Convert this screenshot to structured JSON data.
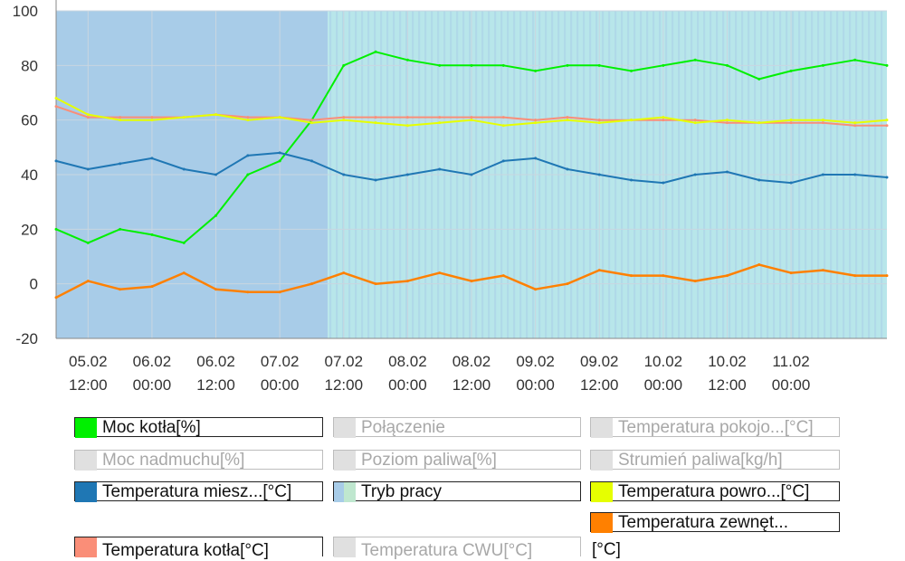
{
  "chart_data": {
    "type": "line",
    "ylim": [
      -20,
      100
    ],
    "y_ticks": [
      100,
      80,
      60,
      40,
      20,
      0,
      -20
    ],
    "x_range": [
      "2024-02-05T06:00",
      "2024-02-11T18:00"
    ],
    "x_ticks": [
      {
        "line1": "05.02",
        "line2": "12:00"
      },
      {
        "line1": "06.02",
        "line2": "00:00"
      },
      {
        "line1": "06.02",
        "line2": "12:00"
      },
      {
        "line1": "07.02",
        "line2": "00:00"
      },
      {
        "line1": "07.02",
        "line2": "12:00"
      },
      {
        "line1": "08.02",
        "line2": "00:00"
      },
      {
        "line1": "08.02",
        "line2": "12:00"
      },
      {
        "line1": "09.02",
        "line2": "00:00"
      },
      {
        "line1": "09.02",
        "line2": "12:00"
      },
      {
        "line1": "10.02",
        "line2": "00:00"
      },
      {
        "line1": "10.02",
        "line2": "12:00"
      },
      {
        "line1": "11.02",
        "line2": "00:00"
      }
    ],
    "grid": true,
    "series": [
      {
        "name": "Moc kotła[%]",
        "color": "#00f000",
        "x": [
          "05.02 06:00",
          "05.02 12:00",
          "05.02 18:00",
          "06.02 00:00",
          "06.02 06:00",
          "06.02 12:00",
          "06.02 18:00",
          "07.02 00:00",
          "07.02 06:00",
          "07.02 12:00",
          "07.02 18:00",
          "08.02 00:00",
          "08.02 06:00",
          "08.02 12:00",
          "08.02 18:00",
          "09.02 00:00",
          "09.02 06:00",
          "09.02 12:00",
          "09.02 18:00",
          "10.02 00:00",
          "10.02 06:00",
          "10.02 12:00",
          "10.02 18:00",
          "11.02 00:00",
          "11.02 06:00",
          "11.02 12:00",
          "11.02 18:00"
        ],
        "values": [
          20,
          15,
          20,
          18,
          15,
          25,
          40,
          45,
          60,
          80,
          85,
          82,
          80,
          80,
          80,
          78,
          80,
          80,
          78,
          80,
          82,
          80,
          75,
          78,
          80,
          82,
          80
        ]
      },
      {
        "name": "Temperatura miesz...[°C]",
        "color": "#1f77b4",
        "x": [
          "05.02 06:00",
          "05.02 12:00",
          "05.02 18:00",
          "06.02 00:00",
          "06.02 06:00",
          "06.02 12:00",
          "06.02 18:00",
          "07.02 00:00",
          "07.02 06:00",
          "07.02 12:00",
          "07.02 18:00",
          "08.02 00:00",
          "08.02 06:00",
          "08.02 12:00",
          "08.02 18:00",
          "09.02 00:00",
          "09.02 06:00",
          "09.02 12:00",
          "09.02 18:00",
          "10.02 00:00",
          "10.02 06:00",
          "10.02 12:00",
          "10.02 18:00",
          "11.02 00:00",
          "11.02 06:00",
          "11.02 12:00",
          "11.02 18:00"
        ],
        "values": [
          45,
          42,
          44,
          46,
          42,
          40,
          47,
          48,
          45,
          40,
          38,
          40,
          42,
          40,
          45,
          46,
          42,
          40,
          38,
          37,
          40,
          41,
          38,
          37,
          40,
          40,
          39
        ]
      },
      {
        "name": "Temperatura powro...[°C]",
        "color": "#e6ff00",
        "x": [
          "05.02 06:00",
          "05.02 12:00",
          "05.02 18:00",
          "06.02 00:00",
          "06.02 06:00",
          "06.02 12:00",
          "06.02 18:00",
          "07.02 00:00",
          "07.02 06:00",
          "07.02 12:00",
          "07.02 18:00",
          "08.02 00:00",
          "08.02 06:00",
          "08.02 12:00",
          "08.02 18:00",
          "09.02 00:00",
          "09.02 06:00",
          "09.02 12:00",
          "09.02 18:00",
          "10.02 00:00",
          "10.02 06:00",
          "10.02 12:00",
          "10.02 18:00",
          "11.02 00:00",
          "11.02 06:00",
          "11.02 12:00",
          "11.02 18:00"
        ],
        "values": [
          68,
          62,
          60,
          60,
          61,
          62,
          60,
          61,
          59,
          60,
          59,
          58,
          59,
          60,
          58,
          59,
          60,
          59,
          60,
          61,
          59,
          60,
          59,
          60,
          60,
          59,
          60
        ]
      },
      {
        "name": "Temperatura kotła[°C]",
        "color": "#fa8e78",
        "x": [
          "05.02 06:00",
          "05.02 12:00",
          "05.02 18:00",
          "06.02 00:00",
          "06.02 06:00",
          "06.02 12:00",
          "06.02 18:00",
          "07.02 00:00",
          "07.02 06:00",
          "07.02 12:00",
          "07.02 18:00",
          "08.02 00:00",
          "08.02 06:00",
          "08.02 12:00",
          "08.02 18:00",
          "09.02 00:00",
          "09.02 06:00",
          "09.02 12:00",
          "09.02 18:00",
          "10.02 00:00",
          "10.02 06:00",
          "10.02 12:00",
          "10.02 18:00",
          "11.02 00:00",
          "11.02 06:00",
          "11.02 12:00",
          "11.02 18:00"
        ],
        "values": [
          65,
          61,
          61,
          61,
          61,
          62,
          61,
          61,
          60,
          61,
          61,
          61,
          61,
          61,
          61,
          60,
          61,
          60,
          60,
          60,
          60,
          59,
          59,
          59,
          59,
          58,
          58
        ]
      },
      {
        "name": "Temperatura zewnęt... [°C]",
        "color": "#ff8000",
        "x": [
          "05.02 06:00",
          "05.02 12:00",
          "05.02 18:00",
          "06.02 00:00",
          "06.02 06:00",
          "06.02 12:00",
          "06.02 18:00",
          "07.02 00:00",
          "07.02 06:00",
          "07.02 12:00",
          "07.02 18:00",
          "08.02 00:00",
          "08.02 06:00",
          "08.02 12:00",
          "08.02 18:00",
          "09.02 00:00",
          "09.02 06:00",
          "09.02 12:00",
          "09.02 18:00",
          "10.02 00:00",
          "10.02 06:00",
          "10.02 12:00",
          "10.02 18:00",
          "11.02 00:00",
          "11.02 06:00",
          "11.02 12:00",
          "11.02 18:00"
        ],
        "values": [
          -5,
          1,
          -2,
          -1,
          4,
          -2,
          -3,
          -3,
          0,
          4,
          0,
          1,
          4,
          1,
          3,
          -2,
          0,
          5,
          3,
          3,
          1,
          3,
          7,
          4,
          5,
          3,
          3
        ]
      }
    ],
    "background_series": {
      "name": "Tryb pracy",
      "colors": [
        "#a8cce8",
        "#b8e6ea"
      ],
      "segments": [
        {
          "from": "05.02 06:00",
          "to": "07.02 09:00",
          "color": "#a8cce8"
        },
        {
          "from": "07.02 09:00",
          "to": "11.02 18:00",
          "color": "#b8e6ea"
        }
      ]
    }
  },
  "legend": [
    {
      "name": "Moc kotła[%]",
      "color": "#00f000",
      "active": true
    },
    {
      "name": "Połączenie",
      "color": "#e0e0e0",
      "active": false
    },
    {
      "name": "Temperatura pokojo...[°C]",
      "color": "#e0e0e0",
      "active": false
    },
    {
      "name": "Moc nadmuchu[%]",
      "color": "#e0e0e0",
      "active": false
    },
    {
      "name": "Poziom paliwa[%]",
      "color": "#e0e0e0",
      "active": false
    },
    {
      "name": "Strumień paliwa[kg/h]",
      "color": "#e0e0e0",
      "active": false
    },
    {
      "name": "Temperatura miesz...[°C]",
      "color": "#1f77b4",
      "active": true
    },
    {
      "name": "Tryb pracy",
      "color": "#a8d8e8",
      "active": true
    },
    {
      "name": "Temperatura powro...[°C]",
      "color": "#e6ff00",
      "active": true
    },
    {
      "name": "Temperatura zewnęt...",
      "name_tail": "[°C]",
      "color": "#ff8000",
      "active": true
    },
    {
      "name": "Temperatura kotła[°C]",
      "color": "#fa8e78",
      "active": true
    },
    {
      "name": "Temperatura CWU[°C]",
      "color": "#e0e0e0",
      "active": false
    }
  ]
}
